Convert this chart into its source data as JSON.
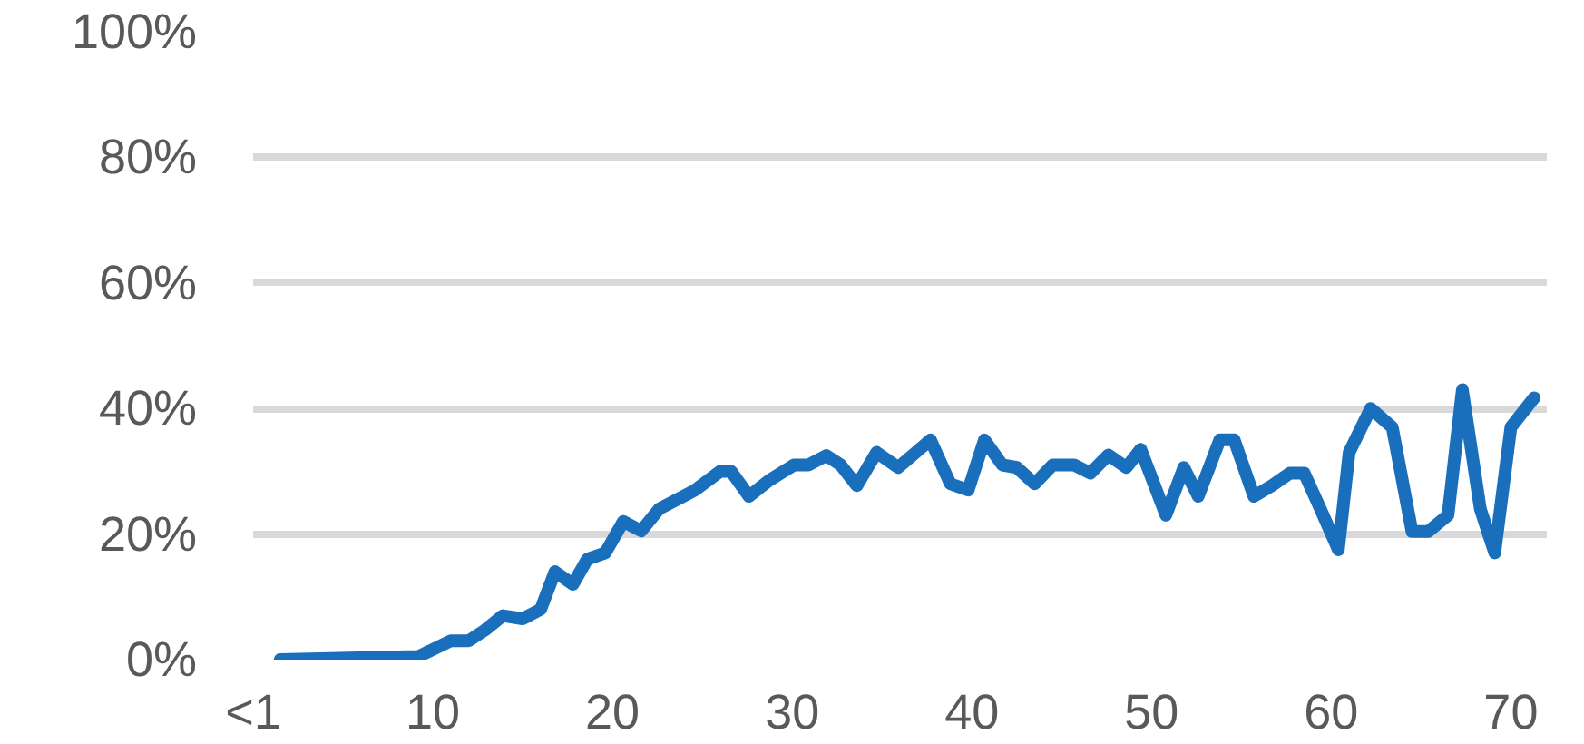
{
  "chart_data": {
    "type": "line",
    "x": [
      1.5,
      9.2,
      11,
      12,
      12.9,
      13.9,
      15,
      16,
      16.8,
      17.8,
      18.6,
      19.6,
      20.6,
      21.6,
      22.6,
      24.6,
      26,
      26.6,
      27.6,
      28.7,
      30.1,
      30.9,
      31.9,
      32.7,
      33.6,
      34.7,
      35.9,
      37.7,
      38.8,
      39.8,
      40.7,
      41.7,
      42.5,
      43.5,
      44.5,
      45.7,
      46.6,
      47.6,
      48.6,
      49.4,
      50.8,
      51.8,
      52.6,
      53.8,
      54.6,
      55.7,
      56.7,
      57.7,
      58.5,
      59.4,
      60.4,
      61,
      62.2,
      63.4,
      64.5,
      65.4,
      66.5,
      67.3,
      68.3,
      69.1,
      70,
      71.3
    ],
    "series": [
      {
        "color": "#1a6fbd",
        "values": [
          0,
          0.5,
          3,
          3,
          4.7,
          7,
          6.5,
          8,
          14,
          12,
          16,
          17,
          22,
          20.5,
          24,
          27,
          30,
          30,
          26,
          28.5,
          31,
          31,
          32.5,
          31,
          27.7,
          33,
          30.6,
          35,
          28,
          27,
          35,
          31,
          30.6,
          28,
          31,
          31,
          29.7,
          32.6,
          30.6,
          33.5,
          23,
          30.6,
          26,
          35,
          35,
          26,
          27.7,
          29.7,
          29.7,
          24,
          17.5,
          33,
          40,
          37,
          20.4,
          20.4,
          23,
          43,
          24,
          17,
          37,
          41.7
        ]
      }
    ],
    "xlim": [
      0,
      72
    ],
    "xticks": [
      {
        "value": 0,
        "label": "<1"
      },
      10,
      20,
      30,
      40,
      50,
      60,
      70
    ],
    "ylim": [
      0,
      100
    ],
    "yticks": [
      {
        "value": 0,
        "label": "0%"
      },
      {
        "value": 20,
        "label": "20%"
      },
      {
        "value": 40,
        "label": "40%"
      },
      {
        "value": 60,
        "label": "60%"
      },
      {
        "value": 80,
        "label": "80%"
      },
      {
        "value": 100,
        "label": "100%"
      }
    ],
    "grid": "y"
  }
}
